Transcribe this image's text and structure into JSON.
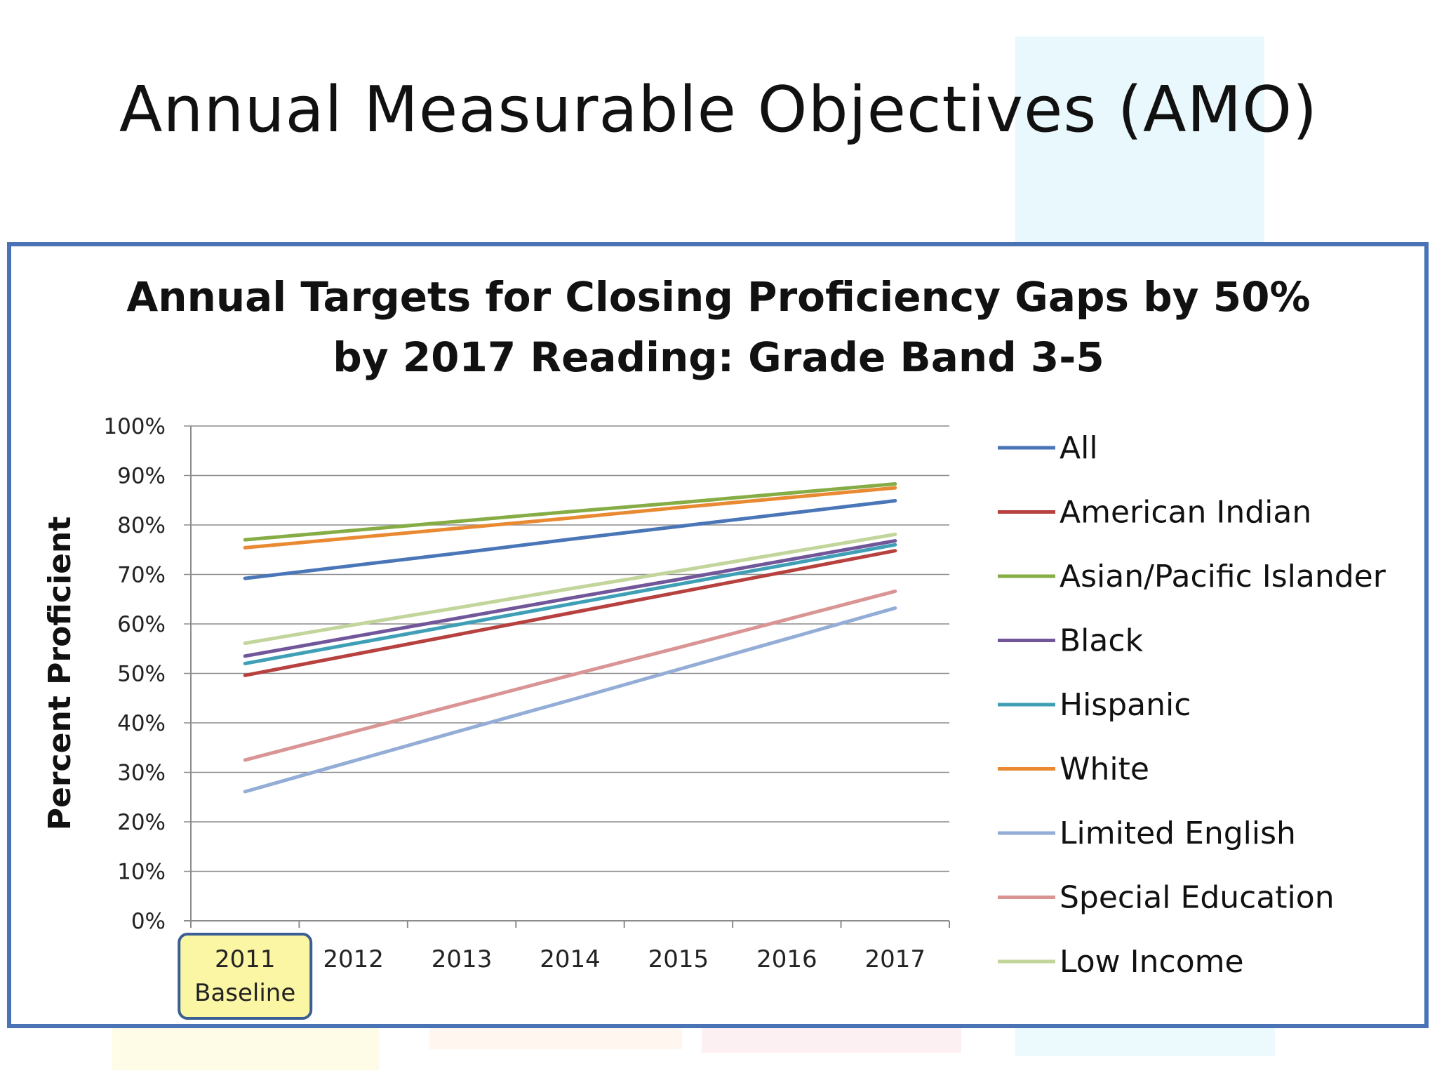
{
  "slide": {
    "title": "Annual Measurable Objectives (AMO)"
  },
  "chart_data": {
    "type": "line",
    "title_lines": [
      "Annual Targets for Closing Proficiency Gaps by 50%",
      "by 2017 Reading: Grade Band 3-5"
    ],
    "ylabel": "Percent Proficient",
    "xlabel": "",
    "ylim": [
      0,
      100
    ],
    "yticks": [
      "0%",
      "10%",
      "20%",
      "30%",
      "40%",
      "50%",
      "60%",
      "70%",
      "80%",
      "90%",
      "100%"
    ],
    "categories": [
      "2011|Baseline",
      "2012",
      "2013",
      "2014",
      "2015",
      "2016",
      "2017"
    ],
    "highlighted_category_index": 0,
    "highlight_fill": "#fbf6a3",
    "highlight_border": "#3b5e93",
    "grid": true,
    "legend_position": "right",
    "series": [
      {
        "name": "All",
        "color": "#4a76b8",
        "values": [
          69.2,
          71.8,
          74.4,
          77.1,
          79.7,
          82.3,
          84.9
        ]
      },
      {
        "name": "American Indian",
        "color": "#b6413f",
        "values": [
          49.6,
          53.8,
          58.0,
          62.2,
          66.4,
          70.6,
          74.8
        ]
      },
      {
        "name": "Asian/Pacific Islander",
        "color": "#86ad45",
        "values": [
          77.0,
          78.9,
          80.8,
          82.7,
          84.5,
          86.4,
          88.3
        ]
      },
      {
        "name": "Black",
        "color": "#71569a",
        "values": [
          53.5,
          57.4,
          61.3,
          65.2,
          69.0,
          72.9,
          76.8
        ]
      },
      {
        "name": "Hispanic",
        "color": "#3f9fb6",
        "values": [
          52.0,
          56.0,
          60.0,
          64.0,
          68.0,
          72.0,
          76.0
        ]
      },
      {
        "name": "White",
        "color": "#e98a33",
        "values": [
          75.4,
          77.4,
          79.4,
          81.4,
          83.5,
          85.5,
          87.5
        ]
      },
      {
        "name": "Limited English",
        "color": "#93add6",
        "values": [
          26.1,
          32.3,
          38.5,
          44.6,
          50.8,
          57.0,
          63.2
        ]
      },
      {
        "name": "Special Education",
        "color": "#d99594",
        "values": [
          32.5,
          38.2,
          43.9,
          49.6,
          55.2,
          60.9,
          66.6
        ]
      },
      {
        "name": "Low Income",
        "color": "#c2d59b",
        "values": [
          56.1,
          59.8,
          63.4,
          67.1,
          70.7,
          74.4,
          78.1
        ]
      }
    ]
  }
}
